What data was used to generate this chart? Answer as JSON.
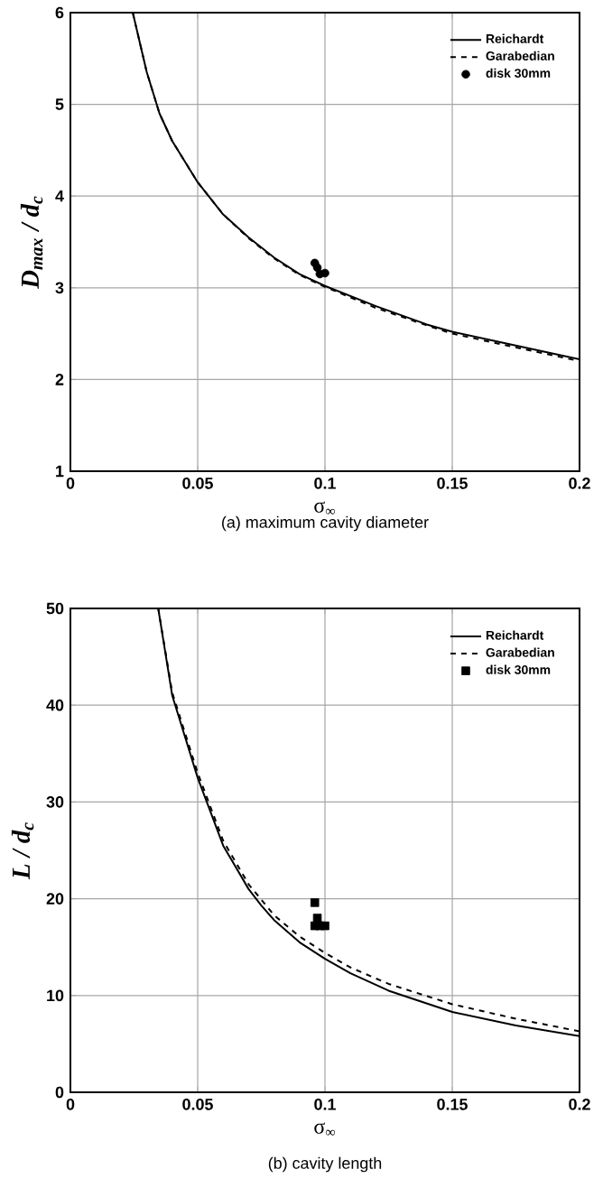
{
  "chart_data": [
    {
      "type": "line",
      "xlabel": "σ$_{∞}$",
      "ylabel": "D$_{max}$ / d$_{c}$",
      "xlim": [
        0,
        0.2
      ],
      "ylim": [
        1,
        6
      ],
      "xticks": [
        0,
        0.05,
        0.1,
        0.15,
        0.2
      ],
      "yticks": [
        1,
        2,
        3,
        4,
        5,
        6
      ],
      "grid": true,
      "legend": "top right",
      "annotations": [
        "(a)    maximum cavity diameter"
      ],
      "series": [
        {
          "name": "Reichardt",
          "color": "#000000",
          "line_style": "solid",
          "marker": "none",
          "x": [
            0.0245,
            0.03,
            0.035,
            0.04,
            0.05,
            0.06,
            0.07,
            0.08,
            0.09,
            0.1,
            0.12,
            0.14,
            0.15,
            0.17,
            0.2
          ],
          "values": [
            6.0,
            5.35,
            4.9,
            4.6,
            4.15,
            3.8,
            3.55,
            3.33,
            3.15,
            3.02,
            2.8,
            2.6,
            2.52,
            2.4,
            2.22
          ]
        },
        {
          "name": "Garabedian",
          "color": "#000000",
          "line_style": "dashed",
          "marker": "none",
          "x": [
            0.0245,
            0.03,
            0.035,
            0.04,
            0.05,
            0.06,
            0.07,
            0.08,
            0.09,
            0.1,
            0.12,
            0.14,
            0.15,
            0.17,
            0.2
          ],
          "values": [
            6.0,
            5.35,
            4.9,
            4.6,
            4.15,
            3.8,
            3.54,
            3.32,
            3.14,
            3.01,
            2.78,
            2.59,
            2.5,
            2.38,
            2.2
          ]
        },
        {
          "name": "disk 30mm",
          "type": "scatter",
          "color": "#000000",
          "marker": "circle",
          "x": [
            0.096,
            0.097,
            0.098,
            0.099,
            0.1
          ],
          "values": [
            3.27,
            3.22,
            3.15,
            null,
            3.16
          ]
        }
      ]
    },
    {
      "type": "line",
      "xlabel": "σ$_{∞}$",
      "ylabel": "L / d$_{c}$",
      "xlim": [
        0,
        0.2
      ],
      "ylim": [
        0,
        50
      ],
      "xticks": [
        0,
        0.05,
        0.1,
        0.15,
        0.2
      ],
      "yticks": [
        0,
        10,
        20,
        30,
        40,
        50
      ],
      "grid": true,
      "legend": "top right",
      "annotations": [
        "(b)    cavity length"
      ],
      "series": [
        {
          "name": "Reichardt",
          "color": "#000000",
          "line_style": "solid",
          "marker": "none",
          "x": [
            0.0345,
            0.04,
            0.05,
            0.06,
            0.07,
            0.075,
            0.08,
            0.09,
            0.1,
            0.11,
            0.125,
            0.15,
            0.175,
            0.2
          ],
          "values": [
            50,
            41,
            32.5,
            25.5,
            21,
            19.3,
            17.8,
            15.5,
            13.8,
            12.3,
            10.5,
            8.3,
            6.9,
            5.8
          ]
        },
        {
          "name": "Garabedian",
          "color": "#000000",
          "line_style": "dashed",
          "marker": "none",
          "x": [
            0.0345,
            0.04,
            0.05,
            0.06,
            0.07,
            0.08,
            0.09,
            0.1,
            0.11,
            0.125,
            0.15,
            0.175,
            0.2
          ],
          "values": [
            50,
            41.3,
            33,
            26,
            21.5,
            18.3,
            16.1,
            14.4,
            12.9,
            11.2,
            9.1,
            7.6,
            6.3
          ]
        },
        {
          "name": "disk 30mm",
          "type": "scatter",
          "color": "#000000",
          "marker": "square",
          "x": [
            0.096,
            0.097,
            0.096,
            0.098,
            0.1
          ],
          "values": [
            19.6,
            18,
            17.2,
            17.2,
            17.2
          ]
        }
      ]
    }
  ]
}
